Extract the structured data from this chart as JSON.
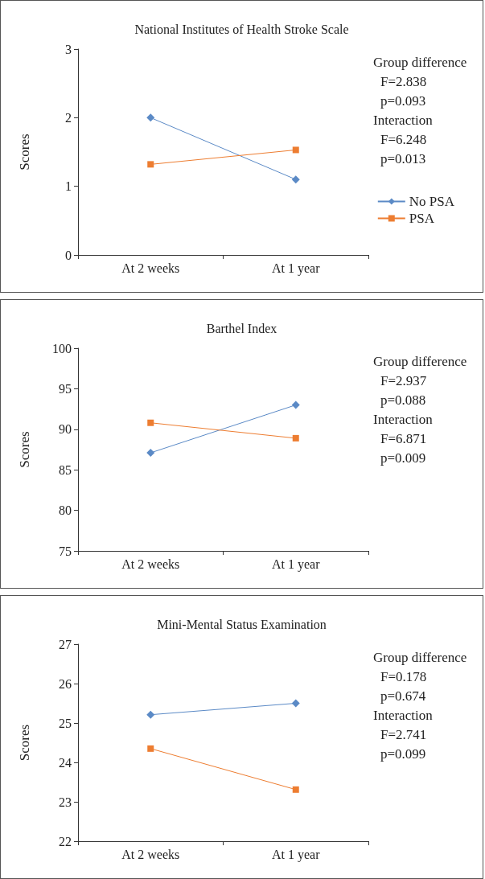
{
  "chart_data": [
    {
      "type": "line",
      "title": "National Institutes of Health Stroke Scale",
      "ylabel": "Scores",
      "categories": [
        "At 2 weeks",
        "At 1 year"
      ],
      "ylim": [
        0,
        3
      ],
      "yticks": [
        0,
        1,
        2,
        3
      ],
      "grid": false,
      "legend": "right",
      "series": [
        {
          "name": "No PSA",
          "color": "#5b8ac6",
          "marker": "diamond",
          "values": [
            2.0,
            1.1
          ]
        },
        {
          "name": "PSA",
          "color": "#ed7d31",
          "marker": "square",
          "values": [
            1.32,
            1.53
          ]
        }
      ],
      "annotations": [
        "Group difference",
        "F=2.838",
        "p=0.093",
        "Interaction",
        "F=6.248",
        "p=0.013"
      ]
    },
    {
      "type": "line",
      "title": "Barthel Index",
      "ylabel": "Scores",
      "categories": [
        "At 2 weeks",
        "At 1 year"
      ],
      "ylim": [
        75,
        100
      ],
      "yticks": [
        75,
        80,
        85,
        90,
        95,
        100
      ],
      "grid": false,
      "series": [
        {
          "color": "#5b8ac6",
          "marker": "diamond",
          "values": [
            87.1,
            93.0
          ]
        },
        {
          "color": "#ed7d31",
          "marker": "square",
          "values": [
            90.8,
            88.9
          ]
        }
      ],
      "annotations": [
        "Group difference",
        "F=2.937",
        "p=0.088",
        "Interaction",
        "F=6.871",
        "p=0.009"
      ]
    },
    {
      "type": "line",
      "title": "Mini-Mental Status Examination",
      "ylabel": "Scores",
      "categories": [
        "At 2 weeks",
        "At 1 year"
      ],
      "ylim": [
        22,
        27
      ],
      "yticks": [
        22,
        23,
        24,
        25,
        26,
        27
      ],
      "grid": false,
      "series": [
        {
          "color": "#5b8ac6",
          "marker": "diamond",
          "values": [
            25.21,
            25.5
          ]
        },
        {
          "color": "#ed7d31",
          "marker": "square",
          "values": [
            24.35,
            23.31
          ]
        }
      ],
      "annotations": [
        "Group difference",
        "F=0.178",
        "p=0.674",
        "Interaction",
        "F=2.741",
        "p=0.099"
      ]
    }
  ]
}
